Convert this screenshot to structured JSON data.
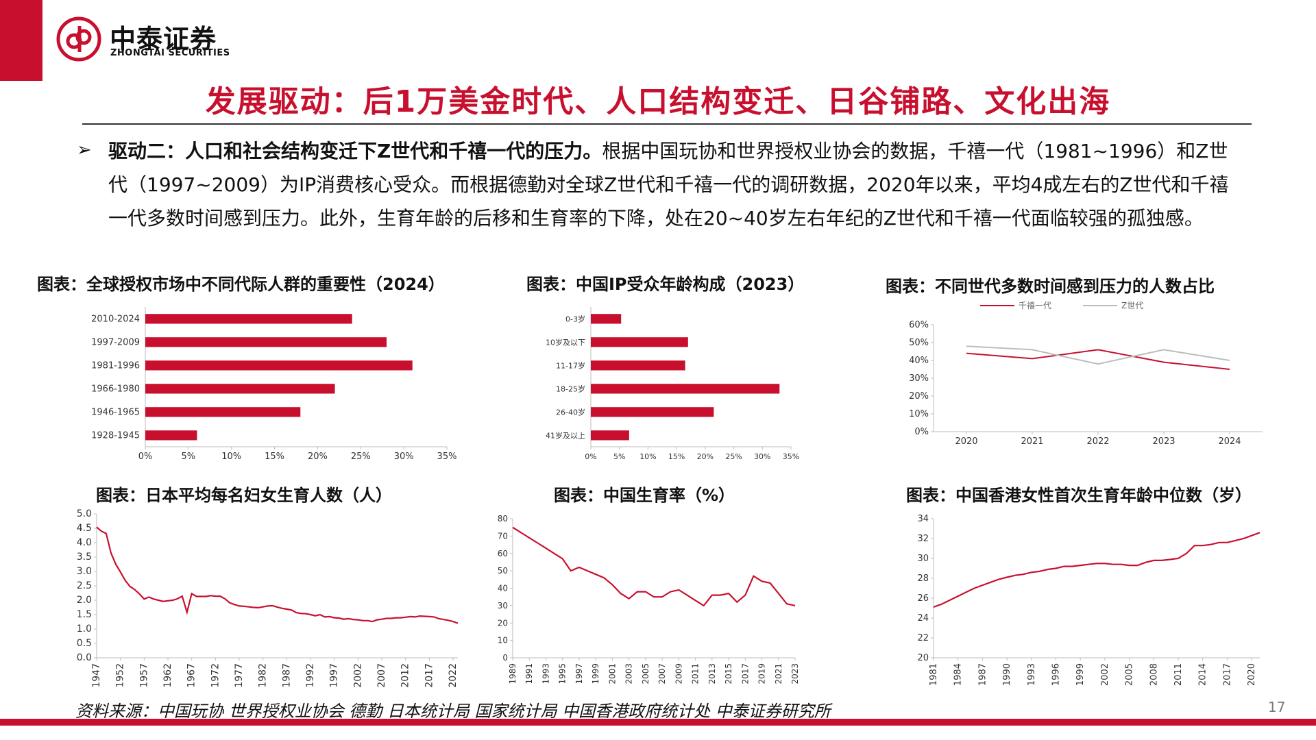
{
  "brand": {
    "name_cn": "中泰证券",
    "name_en": "ZHONGTAI SECURITIES",
    "color": "#c8102e"
  },
  "title": "发展驱动：后1万美金时代、人口结构变迁、日谷铺路、文化出海",
  "intro": {
    "heading": "驱动二：人口和社会结构变迁下Z世代和千禧一代的压力。",
    "body": "根据中国玩协和世界授权业协会的数据，千禧一代（1981~1996）和Z世代（1997~2009）为IP消费核心受众。而根据德勤对全球Z世代和千禧一代的调研数据，2020年以来，平均4成左右的Z世代和千禧一代多数时间感到压力。此外，生育年龄的后移和生育率的下降，处在20~40岁左右年纪的Z世代和千禧一代面临较强的孤独感。"
  },
  "chart_data": [
    {
      "id": "c1",
      "type": "bar",
      "orientation": "horizontal",
      "title": "图表：全球授权市场中不同代际人群的重要性（2024）",
      "categories": [
        "2010-2024",
        "1997-2009",
        "1981-1996",
        "1966-1980",
        "1946-1965",
        "1928-1945"
      ],
      "values": [
        24,
        28,
        31,
        22,
        18,
        6
      ],
      "xlim": [
        0,
        35
      ],
      "xticks": [
        0,
        5,
        10,
        15,
        20,
        25,
        30,
        35
      ],
      "tick_suffix": "%",
      "color": "#c8102e",
      "grid": false
    },
    {
      "id": "c2",
      "type": "bar",
      "orientation": "horizontal",
      "title": "图表：中国IP受众年龄构成（2023）",
      "categories": [
        "0-3岁",
        "10岁及以下",
        "11-17岁",
        "18-25岁",
        "26-40岁",
        "41岁及以上"
      ],
      "values": [
        5.3,
        17,
        16.5,
        33,
        21.5,
        6.7
      ],
      "xlim": [
        0,
        35
      ],
      "xticks": [
        0,
        5,
        10,
        15,
        20,
        25,
        30,
        35
      ],
      "tick_suffix": "%",
      "color": "#c8102e",
      "grid": false
    },
    {
      "id": "c3",
      "type": "line",
      "title": "图表：不同世代多数时间感到压力的人数占比",
      "x": [
        "2020",
        "2021",
        "2022",
        "2023",
        "2024"
      ],
      "series": [
        {
          "name": "千禧一代",
          "values": [
            44,
            41,
            46,
            39,
            35
          ],
          "color": "#c8102e"
        },
        {
          "name": "Z世代",
          "values": [
            48,
            46,
            38,
            46,
            40
          ],
          "color": "#bdbdbd"
        }
      ],
      "ylim": [
        0,
        60
      ],
      "yticks": [
        0,
        10,
        20,
        30,
        40,
        50,
        60
      ],
      "tick_suffix": "%",
      "legend": "top",
      "grid": false
    },
    {
      "id": "c4",
      "type": "line",
      "title": "图表：日本平均每名妇女生育人数（人）",
      "x": [
        1947,
        1948,
        1949,
        1950,
        1951,
        1952,
        1953,
        1954,
        1955,
        1956,
        1957,
        1958,
        1959,
        1960,
        1961,
        1962,
        1963,
        1964,
        1965,
        1966,
        1967,
        1968,
        1969,
        1970,
        1971,
        1972,
        1973,
        1974,
        1975,
        1976,
        1977,
        1978,
        1979,
        1980,
        1981,
        1982,
        1983,
        1984,
        1985,
        1986,
        1987,
        1988,
        1989,
        1990,
        1991,
        1992,
        1993,
        1994,
        1995,
        1996,
        1997,
        1998,
        1999,
        2000,
        2001,
        2002,
        2003,
        2004,
        2005,
        2006,
        2007,
        2008,
        2009,
        2010,
        2011,
        2012,
        2013,
        2014,
        2015,
        2016,
        2017,
        2018,
        2019,
        2020,
        2021,
        2022,
        2023
      ],
      "values": [
        4.54,
        4.4,
        4.32,
        3.65,
        3.26,
        2.98,
        2.69,
        2.48,
        2.37,
        2.22,
        2.04,
        2.11,
        2.04,
        2.0,
        1.96,
        1.98,
        2.0,
        2.05,
        2.14,
        1.58,
        2.23,
        2.13,
        2.13,
        2.13,
        2.16,
        2.14,
        2.14,
        2.05,
        1.91,
        1.85,
        1.8,
        1.79,
        1.77,
        1.75,
        1.74,
        1.77,
        1.8,
        1.81,
        1.76,
        1.72,
        1.69,
        1.66,
        1.57,
        1.54,
        1.53,
        1.5,
        1.46,
        1.5,
        1.42,
        1.43,
        1.39,
        1.38,
        1.34,
        1.36,
        1.33,
        1.32,
        1.29,
        1.29,
        1.26,
        1.32,
        1.34,
        1.37,
        1.37,
        1.39,
        1.39,
        1.41,
        1.43,
        1.42,
        1.45,
        1.44,
        1.43,
        1.42,
        1.36,
        1.33,
        1.3,
        1.26,
        1.2
      ],
      "xticks": [
        1947,
        1952,
        1957,
        1962,
        1967,
        1972,
        1977,
        1982,
        1987,
        1992,
        1997,
        2002,
        2007,
        2012,
        2017,
        2022
      ],
      "ylim": [
        0,
        5
      ],
      "yticks": [
        "0.0",
        "0.5",
        "1.0",
        "1.5",
        "2.0",
        "2.5",
        "3.0",
        "3.5",
        "4.0",
        "4.5",
        "5.0"
      ],
      "color": "#c8102e",
      "grid": false
    },
    {
      "id": "c5",
      "type": "line",
      "title": "图表：中国生育率（%）",
      "x": [
        1989,
        1990,
        1991,
        1992,
        1993,
        1994,
        1995,
        1996,
        1997,
        1998,
        1999,
        2000,
        2001,
        2002,
        2003,
        2004,
        2005,
        2006,
        2007,
        2008,
        2009,
        2010,
        2011,
        2012,
        2013,
        2014,
        2015,
        2016,
        2017,
        2018,
        2019,
        2020,
        2021,
        2022,
        2023
      ],
      "values": [
        75,
        72,
        69,
        66,
        63,
        60,
        57,
        50,
        52,
        50,
        48,
        46,
        42,
        37,
        34,
        38,
        38,
        35,
        35,
        38,
        39,
        36,
        33,
        30,
        36,
        36,
        37,
        32,
        36,
        47,
        44,
        43,
        37,
        31,
        30
      ],
      "xticks": [
        1989,
        1991,
        1993,
        1995,
        1997,
        1999,
        2001,
        2003,
        2005,
        2007,
        2009,
        2011,
        2013,
        2015,
        2017,
        2019,
        2021,
        2023
      ],
      "ylim": [
        0,
        80
      ],
      "yticks": [
        0,
        10,
        20,
        30,
        40,
        50,
        60,
        70,
        80
      ],
      "color": "#c8102e",
      "grid": false
    },
    {
      "id": "c6",
      "type": "line",
      "title": "图表：中国香港女性首次生育年龄中位数（岁）",
      "x": [
        1981,
        1982,
        1983,
        1984,
        1985,
        1986,
        1987,
        1988,
        1989,
        1990,
        1991,
        1992,
        1993,
        1994,
        1995,
        1996,
        1997,
        1998,
        1999,
        2000,
        2001,
        2002,
        2003,
        2004,
        2005,
        2006,
        2007,
        2008,
        2009,
        2010,
        2011,
        2012,
        2013,
        2014,
        2015,
        2016,
        2017,
        2018,
        2019,
        2020,
        2021
      ],
      "values": [
        25.1,
        25.4,
        25.8,
        26.2,
        26.6,
        27.0,
        27.3,
        27.6,
        27.9,
        28.1,
        28.3,
        28.4,
        28.6,
        28.7,
        28.9,
        29.0,
        29.2,
        29.2,
        29.3,
        29.4,
        29.5,
        29.5,
        29.4,
        29.4,
        29.3,
        29.3,
        29.6,
        29.8,
        29.8,
        29.9,
        30.0,
        30.5,
        31.3,
        31.3,
        31.4,
        31.6,
        31.6,
        31.8,
        32.0,
        32.3,
        32.6
      ],
      "xticks": [
        1981,
        1984,
        1987,
        1990,
        1993,
        1996,
        1999,
        2002,
        2005,
        2008,
        2011,
        2014,
        2017,
        2020
      ],
      "ylim": [
        20,
        34
      ],
      "yticks": [
        20,
        22,
        24,
        26,
        28,
        30,
        32,
        34
      ],
      "color": "#c8102e",
      "grid": false
    }
  ],
  "source_note": "资料来源：中国玩协 世界授权业协会 德勤 日本统计局 国家统计局 中国香港政府统计处 中泰证券研究所",
  "page_number": "17"
}
